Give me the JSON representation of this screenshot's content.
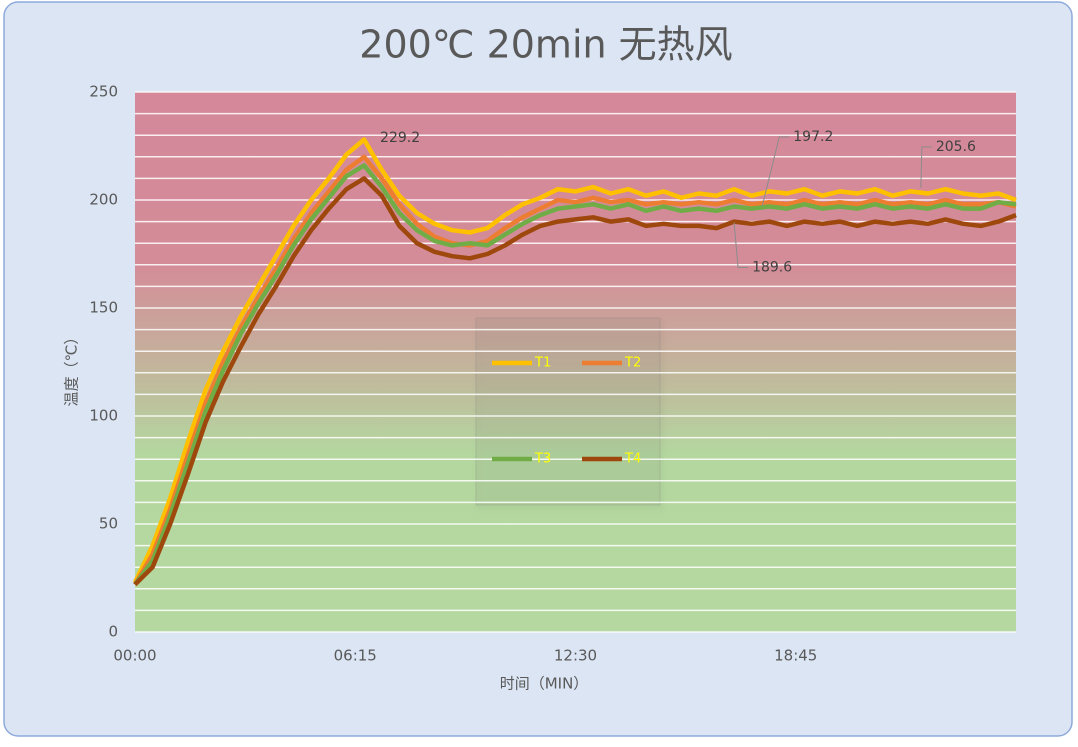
{
  "chart_data": {
    "type": "line",
    "title": "200℃ 20min 无热风",
    "x_label": "时间（MIN）",
    "y_label": "温度（℃）",
    "x": [
      0,
      0.5,
      1,
      1.5,
      2,
      2.5,
      3,
      3.5,
      4,
      4.5,
      5,
      5.5,
      6,
      6.5,
      7,
      7.5,
      8,
      8.5,
      9,
      9.5,
      10,
      10.5,
      11,
      11.5,
      12,
      12.5,
      13,
      13.5,
      14,
      14.5,
      15,
      15.5,
      16,
      16.5,
      17,
      17.5,
      18,
      18.5,
      19,
      19.5,
      20,
      20.5,
      21,
      21.5,
      22,
      22.5,
      23,
      23.5,
      24,
      24.5,
      25
    ],
    "xlim": [
      0,
      25
    ],
    "xticks": [
      {
        "value": 0,
        "label": "00:00"
      },
      {
        "value": 6.25,
        "label": "06:15"
      },
      {
        "value": 12.5,
        "label": "12:30"
      },
      {
        "value": 18.75,
        "label": "18:45"
      }
    ],
    "ylim": [
      0,
      250
    ],
    "yticks": [
      0,
      50,
      100,
      150,
      200,
      250
    ],
    "ygrid": [
      0,
      10,
      20,
      30,
      40,
      50,
      60,
      70,
      80,
      90,
      100,
      110,
      120,
      130,
      140,
      150,
      160,
      170,
      180,
      190,
      200,
      210,
      220,
      230,
      240,
      250
    ],
    "legend": "center",
    "series": [
      {
        "name": "T1",
        "color": "#ffc000",
        "values": [
          23,
          40,
          62,
          88,
          112,
          130,
          146,
          160,
          174,
          188,
          200,
          210,
          221,
          228,
          214,
          202,
          194,
          189,
          186,
          185,
          187,
          193,
          198,
          201,
          205,
          204,
          206,
          203,
          205,
          202,
          204,
          201,
          203,
          202,
          205,
          202,
          204,
          203,
          205,
          202,
          204,
          203,
          205,
          202,
          204,
          203,
          205,
          203,
          202,
          203,
          200
        ]
      },
      {
        "name": "T2",
        "color": "#ed7d31",
        "values": [
          22,
          36,
          57,
          82,
          106,
          125,
          141,
          155,
          168,
          182,
          194,
          204,
          214,
          220,
          210,
          198,
          189,
          183,
          180,
          179,
          181,
          187,
          192,
          196,
          200,
          199,
          201,
          199,
          200,
          198,
          199,
          198,
          199,
          198,
          200,
          198,
          199,
          198,
          200,
          198,
          199,
          198,
          200,
          198,
          199,
          198,
          200,
          198,
          198,
          199,
          197
        ]
      },
      {
        "name": "T3",
        "color": "#70ad47",
        "values": [
          22,
          33,
          54,
          78,
          102,
          121,
          138,
          152,
          165,
          179,
          191,
          201,
          211,
          216,
          206,
          194,
          186,
          181,
          179,
          180,
          179,
          184,
          189,
          193,
          196,
          197,
          198,
          196,
          198,
          195,
          197,
          195,
          196,
          195,
          197,
          196,
          197,
          196,
          198,
          196,
          197,
          196,
          198,
          196,
          197,
          196,
          198,
          196,
          196,
          199,
          198
        ]
      },
      {
        "name": "T4",
        "color": "#9e480e",
        "values": [
          22,
          30,
          50,
          73,
          97,
          116,
          132,
          147,
          160,
          174,
          186,
          196,
          205,
          210,
          202,
          188,
          180,
          176,
          174,
          173,
          175,
          179,
          184,
          188,
          190,
          191,
          192,
          190,
          191,
          188,
          189,
          188,
          188,
          187,
          190,
          189,
          190,
          188,
          190,
          189,
          190,
          188,
          190,
          189,
          190,
          189,
          191,
          189,
          188,
          190,
          193
        ]
      }
    ],
    "annotations": [
      {
        "x": 6.5,
        "value": 229.2
      },
      {
        "x": 17.8,
        "value": 197.2
      },
      {
        "x": 22.3,
        "value": 205.6
      },
      {
        "x": 17.0,
        "value": 189.6
      }
    ]
  }
}
